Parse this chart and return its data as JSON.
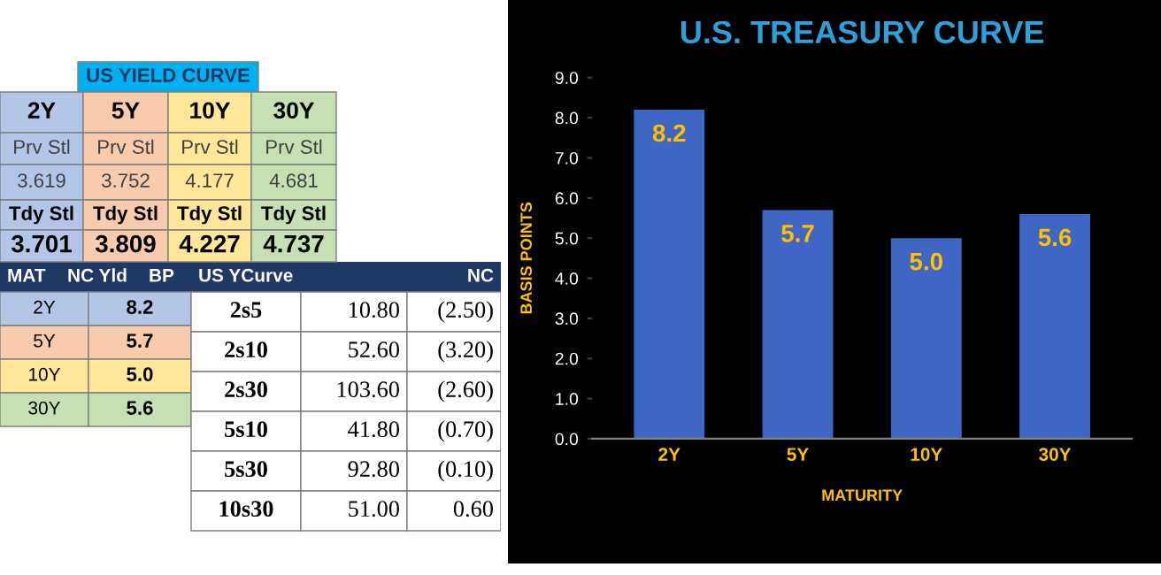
{
  "chart_data": [
    {
      "type": "other",
      "annotations": [
        "US YIELD CURVE",
        "2Y",
        "5Y",
        "10Y",
        "30Y",
        "Prv Stl",
        "Prv Stl",
        "Prv Stl",
        "Prv Stl",
        "3.619",
        "3.752",
        "4.177",
        "4.681",
        "Tdy Stl",
        "Tdy Stl",
        "Tdy Stl",
        "Tdy Stl",
        "3.701",
        "3.809",
        "4.227",
        "4.737",
        "MAT",
        "NC Yld",
        "BP",
        "US YCurve",
        "NC",
        "2Y",
        "8.2",
        "5Y",
        "5.7",
        "10Y",
        "5.0",
        "30Y",
        "5.6",
        "2s5",
        "10.80",
        "(2.50)",
        "2s10",
        "52.60",
        "(3.20)",
        "2s30",
        "103.60",
        "(2.60)",
        "5s10",
        "41.80",
        "(0.70)",
        "5s30",
        "92.80",
        "(0.10)",
        "10s30",
        "51.00",
        "0.60"
      ]
    },
    {
      "type": "bar",
      "title": "U.S. TREASURY CURVE",
      "xlabel": "MATURITY",
      "ylabel": "BASIS POINTS",
      "categories": [
        "2Y",
        "5Y",
        "10Y",
        "30Y"
      ],
      "values": [
        8.2,
        5.7,
        5.0,
        5.6
      ],
      "color": "#3f66c4",
      "value_labels": [
        "8.2",
        "5.7",
        "5.0",
        "5.6"
      ],
      "ylim": [
        0,
        9
      ],
      "yticks": [
        {
          "value": 0,
          "label": "0.0"
        },
        {
          "value": 1,
          "label": "1.0"
        },
        {
          "value": 2,
          "label": "2.0"
        },
        {
          "value": 3,
          "label": "3.0"
        },
        {
          "value": 4,
          "label": "4.0"
        },
        {
          "value": 5,
          "label": "5.0"
        },
        {
          "value": 6,
          "label": "6.0"
        },
        {
          "value": 7,
          "label": "7.0"
        },
        {
          "value": 8,
          "label": "8.0"
        },
        {
          "value": 9,
          "label": "9.0"
        }
      ]
    }
  ]
}
